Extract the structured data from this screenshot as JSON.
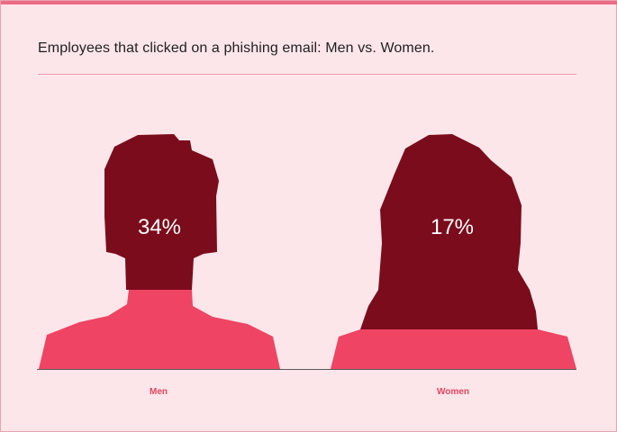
{
  "chart_data": {
    "type": "pictogram",
    "title": "Employees that clicked on a phishing email: Men vs. Women.",
    "categories": [
      "Men",
      "Women"
    ],
    "values": [
      34,
      17
    ],
    "value_labels": [
      "34%",
      "17%"
    ],
    "colors": {
      "hair": "#7b0c1c",
      "body": "#ef4463",
      "background": "#fde6ea",
      "label": "#e0455f"
    }
  }
}
